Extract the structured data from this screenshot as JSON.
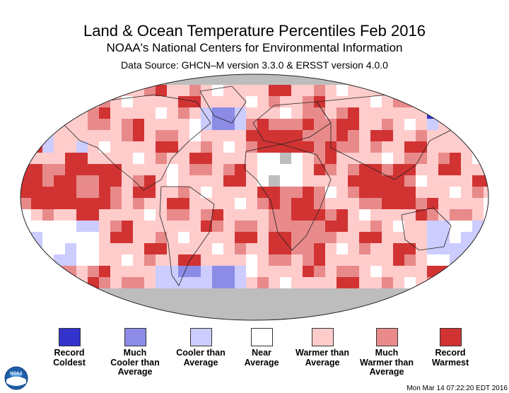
{
  "header": {
    "title": "Land & Ocean Temperature Percentiles Feb 2016",
    "subtitle": "NOAA's National Centers for Environmental Information",
    "source": "Data Source: GHCN–M version 3.3.0 & ERSST version 4.0.0"
  },
  "colors": {
    "record_coldest": "#3333cc",
    "much_cooler": "#8c8ce6",
    "cooler": "#ccccff",
    "near": "#ffffff",
    "warmer": "#ffcccc",
    "much_warmer": "#e88a8a",
    "record_warmest": "#d13333",
    "missing": "#bdbdbd"
  },
  "legend": [
    {
      "key": "record_coldest",
      "lines": [
        "Record",
        "Coldest"
      ]
    },
    {
      "key": "much_cooler",
      "lines": [
        "Much",
        "Cooler than",
        "Average"
      ]
    },
    {
      "key": "cooler",
      "lines": [
        "Cooler than",
        "Average"
      ]
    },
    {
      "key": "near",
      "lines": [
        "Near",
        "Average"
      ]
    },
    {
      "key": "warmer",
      "lines": [
        "Warmer than",
        "Average"
      ]
    },
    {
      "key": "much_warmer",
      "lines": [
        "Much",
        "Warmer than",
        "Average"
      ]
    },
    {
      "key": "record_warmest",
      "lines": [
        "Record",
        "Warmest"
      ]
    }
  ],
  "timestamp": "Mon Mar 14 07:22:20 EDT 2016",
  "logo": {
    "icon": "noaa-logo-icon",
    "text": "NOAA"
  }
}
